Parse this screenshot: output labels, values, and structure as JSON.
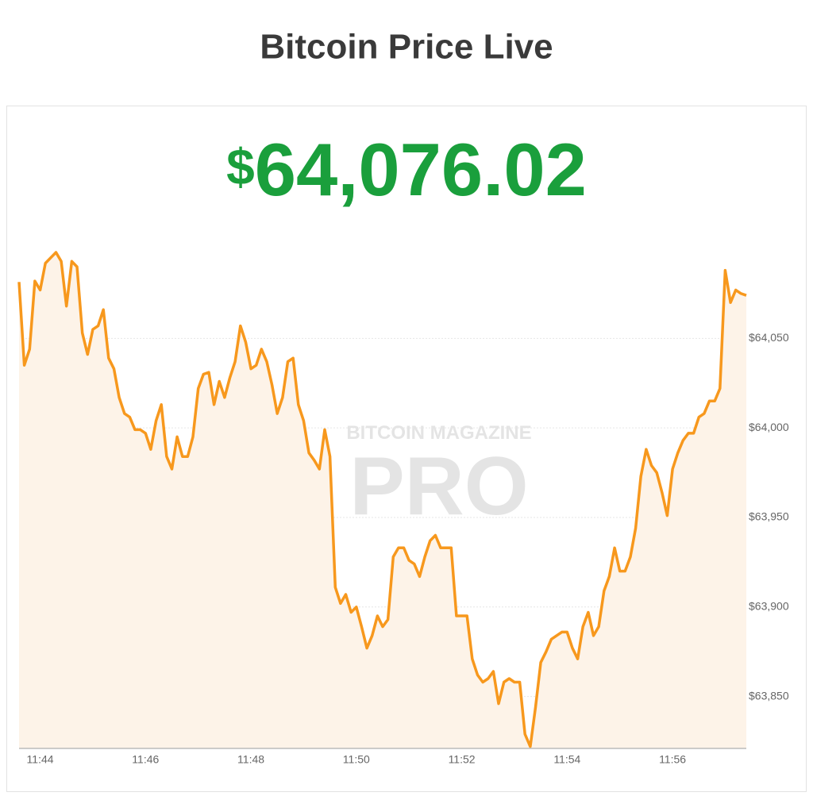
{
  "title": "Bitcoin Price Live",
  "price": {
    "currency": "$",
    "amount": "64,076.02"
  },
  "chart_data": {
    "type": "line",
    "watermark": {
      "top": "BITCOIN MAGAZINE",
      "main": "PRO"
    },
    "color": "#f7981d",
    "grid": true,
    "ylim": [
      63821,
      64106
    ],
    "yticks": [
      {
        "value": 63850,
        "label": "$63,850"
      },
      {
        "value": 63900,
        "label": "$63,900"
      },
      {
        "value": 63950,
        "label": "$63,950"
      },
      {
        "value": 64000,
        "label": "$64,000"
      },
      {
        "value": 64050,
        "label": "$64,050"
      }
    ],
    "categories": [
      null,
      null,
      null,
      null,
      "11:44",
      null,
      null,
      null,
      null,
      null,
      null,
      null,
      null,
      null,
      null,
      null,
      null,
      null,
      null,
      null,
      null,
      null,
      null,
      null,
      "11:46",
      null,
      null,
      null,
      null,
      null,
      null,
      null,
      null,
      null,
      null,
      null,
      null,
      null,
      null,
      null,
      null,
      null,
      null,
      null,
      "11:48",
      null,
      null,
      null,
      null,
      null,
      null,
      null,
      null,
      null,
      null,
      null,
      null,
      null,
      null,
      null,
      null,
      null,
      null,
      null,
      "11:50",
      null,
      null,
      null,
      null,
      null,
      null,
      null,
      null,
      null,
      null,
      null,
      null,
      null,
      null,
      null,
      null,
      null,
      null,
      null,
      "11:52",
      null,
      null,
      null,
      null,
      null,
      null,
      null,
      null,
      null,
      null,
      null,
      null,
      null,
      null,
      null,
      null,
      null,
      null,
      null,
      "11:54",
      null,
      null,
      null,
      null,
      null,
      null,
      null,
      null,
      null,
      null,
      null,
      null,
      null,
      null,
      null,
      null,
      null,
      null,
      null,
      "11:56",
      null,
      null,
      null,
      null,
      null,
      null,
      null,
      null,
      null,
      null,
      null,
      null,
      null,
      null
    ],
    "values": [
      64081.5,
      64035,
      64044,
      64082,
      64077,
      64092,
      64095,
      64098,
      64093,
      64068,
      64093,
      64090,
      64053,
      64041,
      64055,
      64057,
      64066,
      64039,
      64033,
      64017,
      64008,
      64006,
      63999,
      63999,
      63997,
      63988,
      64004,
      64013,
      63984,
      63977,
      63995,
      63984,
      63984,
      63995,
      64022,
      64030,
      64031,
      64013,
      64026,
      64017,
      64028,
      64037,
      64057,
      64048,
      64033,
      64035,
      64044,
      64037,
      64024,
      64008,
      64017,
      64037,
      64039,
      64013,
      64004,
      63986,
      63982,
      63977,
      63999,
      63984,
      63911,
      63902,
      63907,
      63897,
      63900,
      63889,
      63877,
      63884,
      63895,
      63889,
      63893,
      63928,
      63933,
      63933,
      63926,
      63924,
      63917,
      63928,
      63937,
      63940,
      63933,
      63933,
      63933,
      63895,
      63895,
      63895,
      63871,
      63862,
      63858,
      63860,
      63864,
      63846,
      63858,
      63860,
      63858,
      63858,
      63829,
      63822,
      63844,
      63869,
      63875,
      63882,
      63884,
      63886,
      63886,
      63877,
      63871,
      63889,
      63897,
      63884,
      63889,
      63909,
      63917,
      63933,
      63920,
      63920,
      63928,
      63944,
      63973,
      63988,
      63979,
      63975,
      63964,
      63951,
      63977,
      63986,
      63993,
      63997,
      63997,
      64006,
      64008,
      64015,
      64015,
      64022,
      64088,
      64070,
      64077,
      64075,
      64074
    ]
  }
}
